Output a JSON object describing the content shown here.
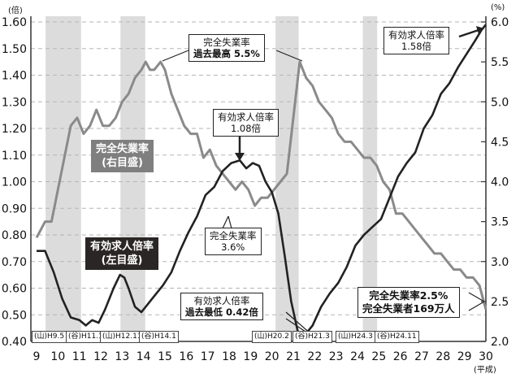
{
  "chart_data": {
    "type": "line",
    "title": "",
    "xlabel": "(平成)",
    "x_ticks": [
      "9",
      "10",
      "11",
      "12",
      "13",
      "14",
      "15",
      "16",
      "17",
      "18",
      "19",
      "20",
      "21",
      "22",
      "23",
      "24",
      "25",
      "26",
      "27",
      "28",
      "29",
      "30"
    ],
    "left_axis": {
      "label": "(倍)",
      "range": [
        0.4,
        1.6
      ],
      "ticks": [
        "0.40",
        "0.50",
        "0.60",
        "0.70",
        "0.80",
        "0.90",
        "1.00",
        "1.10",
        "1.20",
        "1.30",
        "1.40",
        "1.50",
        "1.60"
      ]
    },
    "right_axis": {
      "label": "(%)",
      "range": [
        2.0,
        6.0
      ],
      "ticks": [
        "2.0",
        "2.5",
        "3.0",
        "3.5",
        "4.0",
        "4.5",
        "5.0",
        "5.5",
        "6.0"
      ]
    },
    "grid": "horizontal dashed",
    "shaded_periods": [
      {
        "start_label": "(山)H9.5",
        "end_label": "(谷)H11.1",
        "start": 9.42,
        "end": 11.08
      },
      {
        "start_label": "(山)H12.11",
        "end_label": "(谷)H14.1",
        "start": 12.92,
        "end": 14.08
      },
      {
        "start_label": "(山)H20.2",
        "end_label": "(谷)H21.3",
        "start": 20.17,
        "end": 21.25
      },
      {
        "start_label": "(山)H24.3",
        "end_label": "(谷)H24.11",
        "start": 24.25,
        "end": 24.92
      }
    ],
    "series": [
      {
        "name": "有効求人倍率(左目盛)",
        "axis": "left",
        "color": "#222222",
        "x": [
          9.0,
          9.4,
          9.8,
          10.2,
          10.6,
          11.0,
          11.3,
          11.6,
          11.9,
          12.2,
          12.6,
          12.9,
          13.1,
          13.3,
          13.6,
          13.9,
          14.1,
          14.5,
          14.9,
          15.3,
          15.7,
          16.1,
          16.5,
          16.9,
          17.3,
          17.7,
          18.1,
          18.5,
          18.8,
          19.1,
          19.4,
          19.7,
          20.0,
          20.3,
          20.6,
          20.9,
          21.2,
          21.4,
          21.6,
          21.9,
          22.3,
          22.7,
          23.1,
          23.5,
          23.9,
          24.3,
          24.7,
          25.1,
          25.5,
          25.9,
          26.3,
          26.7,
          27.1,
          27.5,
          27.9,
          28.3,
          28.7,
          29.1,
          29.5,
          29.8,
          30.0
        ],
        "values": [
          0.74,
          0.74,
          0.66,
          0.56,
          0.49,
          0.48,
          0.46,
          0.48,
          0.47,
          0.52,
          0.6,
          0.65,
          0.64,
          0.6,
          0.53,
          0.51,
          0.53,
          0.57,
          0.61,
          0.66,
          0.74,
          0.81,
          0.87,
          0.95,
          0.98,
          1.04,
          1.07,
          1.08,
          1.05,
          1.07,
          1.06,
          1.0,
          0.96,
          0.88,
          0.72,
          0.55,
          0.44,
          0.42,
          0.43,
          0.46,
          0.53,
          0.58,
          0.62,
          0.68,
          0.76,
          0.8,
          0.83,
          0.86,
          0.94,
          1.02,
          1.07,
          1.11,
          1.2,
          1.25,
          1.33,
          1.37,
          1.43,
          1.48,
          1.53,
          1.57,
          1.59
        ]
      },
      {
        "name": "完全失業率(右目盛)",
        "axis": "right",
        "color": "#8a8a8a",
        "x": [
          9.0,
          9.2,
          9.4,
          9.7,
          10.0,
          10.3,
          10.6,
          10.9,
          11.2,
          11.5,
          11.8,
          12.1,
          12.4,
          12.7,
          13.0,
          13.3,
          13.6,
          13.9,
          14.1,
          14.3,
          14.5,
          14.8,
          15.0,
          15.3,
          15.6,
          15.9,
          16.2,
          16.5,
          16.8,
          17.1,
          17.4,
          17.7,
          18.0,
          18.3,
          18.6,
          18.9,
          19.2,
          19.5,
          19.8,
          20.1,
          20.4,
          20.7,
          21.0,
          21.3,
          21.6,
          21.9,
          22.2,
          22.5,
          22.8,
          23.1,
          23.4,
          23.7,
          24.0,
          24.3,
          24.6,
          24.9,
          25.2,
          25.5,
          25.8,
          26.1,
          26.4,
          26.7,
          27.0,
          27.3,
          27.6,
          27.9,
          28.2,
          28.5,
          28.8,
          29.1,
          29.4,
          29.7,
          29.9,
          30.0
        ],
        "values": [
          3.3,
          3.4,
          3.5,
          3.5,
          3.9,
          4.3,
          4.7,
          4.8,
          4.6,
          4.7,
          4.9,
          4.7,
          4.7,
          4.8,
          5.0,
          5.1,
          5.3,
          5.4,
          5.5,
          5.4,
          5.4,
          5.5,
          5.4,
          5.1,
          4.9,
          4.7,
          4.6,
          4.6,
          4.3,
          4.4,
          4.2,
          4.1,
          4.0,
          3.9,
          4.0,
          3.9,
          3.7,
          3.8,
          3.8,
          3.9,
          4.0,
          4.1,
          4.8,
          5.5,
          5.3,
          5.2,
          5.0,
          4.9,
          4.8,
          4.6,
          4.5,
          4.5,
          4.4,
          4.3,
          4.3,
          4.2,
          4.0,
          3.9,
          3.6,
          3.6,
          3.5,
          3.4,
          3.3,
          3.2,
          3.1,
          3.1,
          3.0,
          2.9,
          2.9,
          2.8,
          2.8,
          2.7,
          2.5,
          2.4
        ]
      }
    ],
    "annotations": [
      {
        "text": "完全失業率 過去最高 5.5%",
        "series": "完全失業率",
        "value": 5.5
      },
      {
        "text": "有効求人倍率 1.08倍",
        "series": "有効求人倍率",
        "value": 1.08
      },
      {
        "text": "完全失業率 3.6%",
        "series": "完全失業率",
        "value": 3.6
      },
      {
        "text": "有効求人倍率 過去最低 0.42倍",
        "series": "有効求人倍率",
        "value": 0.42
      },
      {
        "text": "有効求人倍率 1.58倍",
        "series": "有効求人倍率",
        "value": 1.58
      },
      {
        "text": "完全失業率2.5% 完全失業者169万人",
        "series": "完全失業率",
        "value": 2.5
      }
    ]
  },
  "axes": {
    "left_unit": "(倍)",
    "right_unit": "(%)",
    "x_unit": "(平成)"
  },
  "legend": {
    "unemployment_line1": "完全失業率",
    "unemployment_line2": "(右目盛)",
    "jobs_line1": "有効求人倍率",
    "jobs_line2": "(左目盛)"
  },
  "callouts": {
    "peak_unemp_line1": "完全失業率",
    "peak_unemp_line2": "過去最高 5.5%",
    "jobs_108_line1": "有効求人倍率",
    "jobs_108_line2": "1.08倍",
    "unemp_36_line1": "完全失業率",
    "unemp_36_line2": "3.6%",
    "jobs_low_line1": "有効求人倍率",
    "jobs_low_line2": "過去最低 0.42倍",
    "jobs_158_line1": "有効求人倍率",
    "jobs_158_line2": "1.58倍",
    "unemp_25_line1": "完全失業率2.5%",
    "unemp_25_line2": "完全失業者169万人"
  },
  "period_tags": [
    "(山)H9.5",
    "(谷)H11.1",
    "(山)H12.11",
    "(谷)H14.1",
    "(山)H20.2",
    "(谷)H21.3",
    "(山)H24.3",
    "(谷)H24.11"
  ],
  "colors": {
    "jobs_line": "#222222",
    "unemp_line": "#8a8a8a",
    "shade": "#dcdcdc",
    "unemp_legend_bg": "#7f7f7f",
    "jobs_legend_bg": "#2b2626"
  }
}
